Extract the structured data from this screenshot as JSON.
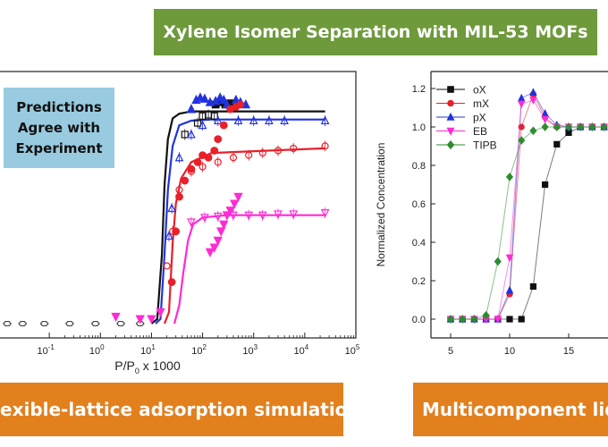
{
  "title_banner": "Xylene Isomer Separation with MIL-53 MOFs",
  "left_banner": "exible-lattice adsorption simulations",
  "right_banner": "Multicomponent liqu",
  "prediction_box": [
    "Predictions",
    "Agree with",
    "Experiment"
  ],
  "colors": {
    "title_bg": "#6e9a3c",
    "banner_bg": "#e2801e",
    "box_bg": "#98cbe0",
    "oX": "#111111",
    "mX": "#e8202a",
    "pX": "#2233dd",
    "EB": "#ff2ad4",
    "TIPB": "#2e8c2e"
  },
  "chart_data": [
    {
      "type": "scatter",
      "xlabel": "P/P0 x 1000",
      "x_scale": "log",
      "xlim": [
        0.01,
        100000
      ],
      "x_ticks": [
        "10^-1",
        "10^0",
        "10^1",
        "10^2",
        "10^3",
        "10^4",
        "10^5"
      ],
      "fitted_curves": [
        {
          "color": "#111111",
          "points": [
            [
              10,
              0
            ],
            [
              13,
              0.02
            ],
            [
              16,
              0.3
            ],
            [
              18,
              0.6
            ],
            [
              21,
              0.8
            ],
            [
              26,
              0.89
            ],
            [
              35,
              0.91
            ],
            [
              60,
              0.92
            ],
            [
              150,
              0.92
            ],
            [
              25000,
              0.92
            ]
          ]
        },
        {
          "color": "#2233dd",
          "points": [
            [
              12,
              0
            ],
            [
              15,
              0.02
            ],
            [
              18,
              0.3
            ],
            [
              21,
              0.58
            ],
            [
              26,
              0.77
            ],
            [
              35,
              0.86
            ],
            [
              60,
              0.88
            ],
            [
              150,
              0.885
            ],
            [
              25000,
              0.885
            ]
          ]
        },
        {
          "color": "#e8202a",
          "points": [
            [
              18,
              0
            ],
            [
              22,
              0.05
            ],
            [
              26,
              0.35
            ],
            [
              30,
              0.52
            ],
            [
              38,
              0.63
            ],
            [
              60,
              0.7
            ],
            [
              150,
              0.74
            ],
            [
              25000,
              0.76
            ]
          ]
        },
        {
          "color": "#ff2ad4",
          "points": [
            [
              28,
              0
            ],
            [
              35,
              0.08
            ],
            [
              42,
              0.22
            ],
            [
              52,
              0.36
            ],
            [
              65,
              0.43
            ],
            [
              100,
              0.46
            ],
            [
              300,
              0.47
            ],
            [
              25000,
              0.47
            ]
          ]
        }
      ],
      "simulation_points": [
        {
          "symbol": "open-square",
          "color": "#111111",
          "points": [
            [
              45,
              0.82
            ],
            [
              80,
              0.87
            ],
            [
              100,
              0.9
            ],
            [
              130,
              0.905
            ],
            [
              170,
              0.9
            ]
          ]
        },
        {
          "symbol": "open-triangle",
          "color": "#2233dd",
          "points": [
            [
              22,
              0.38
            ],
            [
              25,
              0.5
            ],
            [
              35,
              0.72
            ],
            [
              60,
              0.82
            ],
            [
              100,
              0.86
            ],
            [
              200,
              0.88
            ],
            [
              500,
              0.88
            ],
            [
              1000,
              0.88
            ],
            [
              2000,
              0.88
            ],
            [
              4000,
              0.88
            ],
            [
              25000,
              0.88
            ]
          ]
        },
        {
          "symbol": "open-circle",
          "color": "#e8202a",
          "points": [
            [
              20,
              0.25
            ],
            [
              26,
              0.4
            ],
            [
              35,
              0.58
            ],
            [
              60,
              0.66
            ],
            [
              100,
              0.68
            ],
            [
              200,
              0.7
            ],
            [
              400,
              0.72
            ],
            [
              800,
              0.73
            ],
            [
              1500,
              0.74
            ],
            [
              3000,
              0.75
            ],
            [
              6000,
              0.76
            ],
            [
              25000,
              0.77
            ]
          ]
        },
        {
          "symbol": "open-inverted-triangle",
          "color": "#ff2ad4",
          "points": [
            [
              60,
              0.44
            ],
            [
              110,
              0.46
            ],
            [
              200,
              0.465
            ],
            [
              400,
              0.47
            ],
            [
              800,
              0.47
            ],
            [
              1500,
              0.47
            ],
            [
              3000,
              0.475
            ],
            [
              6000,
              0.475
            ],
            [
              25000,
              0.48
            ]
          ]
        },
        {
          "symbol": "open-hexagon",
          "color": "#444444",
          "points": [
            [
              0.015,
              0
            ],
            [
              0.03,
              0
            ],
            [
              0.08,
              0
            ],
            [
              0.25,
              0
            ],
            [
              0.8,
              0
            ],
            [
              2.5,
              0
            ],
            [
              6,
              0
            ]
          ]
        }
      ],
      "experiment_points": [
        {
          "symbol": "filled-square",
          "color": "#111111",
          "points": [
            [
              180,
              0.95
            ],
            [
              230,
              0.96
            ],
            [
              280,
              0.95
            ],
            [
              350,
              0.955
            ]
          ]
        },
        {
          "symbol": "filled-triangle",
          "color": "#2233dd",
          "points": [
            [
              60,
              0.93
            ],
            [
              75,
              0.97
            ],
            [
              90,
              0.98
            ],
            [
              110,
              0.975
            ],
            [
              140,
              0.96
            ],
            [
              180,
              0.965
            ],
            [
              220,
              0.98
            ],
            [
              260,
              0.97
            ],
            [
              300,
              0.95
            ],
            [
              450,
              0.97
            ],
            [
              550,
              0.96
            ],
            [
              700,
              0.95
            ]
          ]
        },
        {
          "symbol": "filled-circle",
          "color": "#e8202a",
          "points": [
            [
              25,
              0.18
            ],
            [
              30,
              0.4
            ],
            [
              35,
              0.55
            ],
            [
              45,
              0.62
            ],
            [
              60,
              0.67
            ],
            [
              80,
              0.7
            ],
            [
              100,
              0.73
            ],
            [
              130,
              0.72
            ],
            [
              170,
              0.75
            ],
            [
              200,
              0.8
            ],
            [
              260,
              0.86
            ],
            [
              350,
              0.93
            ],
            [
              450,
              0.94
            ],
            [
              550,
              0.95
            ]
          ]
        },
        {
          "symbol": "filled-inverted-triangle",
          "color": "#ff2ad4",
          "points": [
            [
              2,
              0.03
            ],
            [
              6,
              0.02
            ],
            [
              10,
              0.02
            ],
            [
              15,
              0.05
            ],
            [
              140,
              0.31
            ],
            [
              170,
              0.33
            ],
            [
              200,
              0.36
            ],
            [
              230,
              0.4
            ],
            [
              260,
              0.43
            ],
            [
              300,
              0.47
            ],
            [
              350,
              0.49
            ],
            [
              420,
              0.52
            ],
            [
              500,
              0.55
            ]
          ]
        }
      ]
    },
    {
      "type": "line",
      "xlabel": "",
      "ylabel": "Normalized Concentration",
      "xlim": [
        3,
        19
      ],
      "ylim": [
        -0.08,
        1.28
      ],
      "x_ticks": [
        5,
        10,
        15
      ],
      "y_ticks": [
        "0.0",
        "0.2",
        "0.4",
        "0.6",
        "0.8",
        "1.0",
        "1.2"
      ],
      "legend_position": "top-left",
      "series": [
        {
          "name": "oX",
          "color": "#111111",
          "marker": "square",
          "x": [
            5,
            6,
            7,
            8,
            9,
            10,
            11,
            12,
            13,
            14,
            15,
            16,
            17,
            18
          ],
          "y": [
            0,
            0,
            0,
            0,
            0,
            0,
            0,
            0.17,
            0.7,
            0.91,
            0.97,
            1.0,
            1.0,
            1.0
          ]
        },
        {
          "name": "mX",
          "color": "#e8202a",
          "marker": "circle",
          "x": [
            5,
            6,
            7,
            8,
            9,
            10,
            11,
            12,
            13,
            14,
            15,
            16,
            17,
            18
          ],
          "y": [
            0,
            0,
            0,
            0,
            0,
            0.13,
            1.0,
            1.17,
            1.05,
            1.0,
            1.0,
            1.0,
            1.0,
            1.0
          ]
        },
        {
          "name": "pX",
          "color": "#2233dd",
          "marker": "triangle",
          "x": [
            5,
            6,
            7,
            8,
            9,
            10,
            11,
            12,
            13,
            14,
            15,
            16,
            17,
            18
          ],
          "y": [
            0,
            0,
            0,
            0,
            0,
            0.15,
            1.15,
            1.18,
            1.07,
            1.01,
            1.0,
            1.0,
            1.0,
            1.0
          ]
        },
        {
          "name": "EB",
          "color": "#ff2ad4",
          "marker": "inverted-triangle",
          "x": [
            5,
            6,
            7,
            8,
            9,
            10,
            11,
            12,
            13,
            14,
            15,
            16,
            17,
            18
          ],
          "y": [
            0,
            0,
            0,
            0,
            0,
            0.32,
            1.12,
            1.14,
            1.04,
            1.0,
            1.0,
            1.0,
            1.0,
            1.0
          ]
        },
        {
          "name": "TIPB",
          "color": "#2e8c2e",
          "marker": "diamond",
          "x": [
            5,
            6,
            7,
            8,
            9,
            10,
            11,
            12,
            13,
            14,
            15,
            16,
            17,
            18
          ],
          "y": [
            0,
            0,
            0,
            0.02,
            0.3,
            0.74,
            0.93,
            0.98,
            1.0,
            1.0,
            1.0,
            1.0,
            1.0,
            1.0
          ]
        }
      ]
    }
  ]
}
